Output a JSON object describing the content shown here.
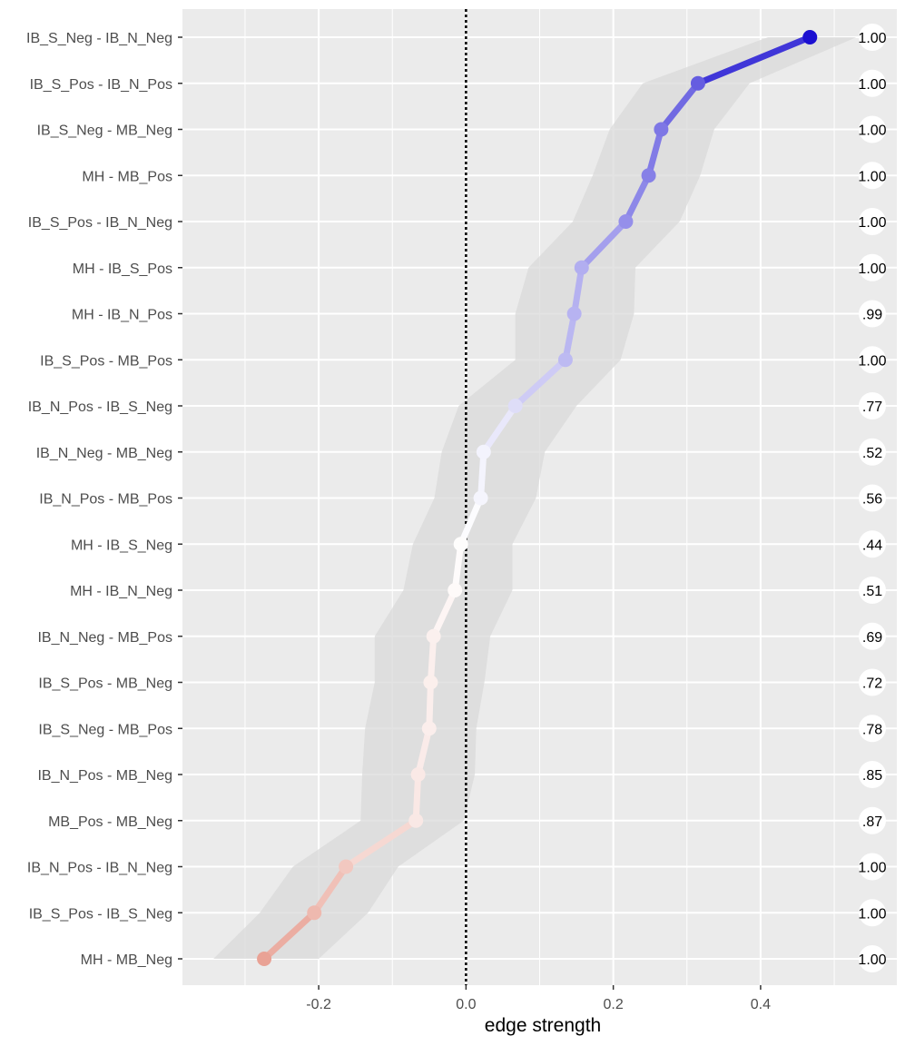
{
  "chart_data": {
    "type": "line",
    "xlabel": "edge strength",
    "ylabel": "",
    "xlim": [
      -0.385,
      0.585
    ],
    "x_ticks": [
      "-0.2",
      "0.0",
      "0.2",
      "0.4"
    ],
    "reference_line_x": 0.0,
    "color_negative": "#d9604a",
    "color_positive": "#1b0fd1",
    "band_color": "#d9d9d9",
    "panel_background": "#ebebeb",
    "grid": true,
    "points": [
      {
        "edge": "IB_S_Neg - IB_N_Neg",
        "value": 0.467,
        "lower": 0.41,
        "upper": 0.53,
        "label": "1.00"
      },
      {
        "edge": "IB_S_Pos - IB_N_Pos",
        "value": 0.315,
        "lower": 0.24,
        "upper": 0.385,
        "label": "1.00"
      },
      {
        "edge": "IB_S_Neg - MB_Neg",
        "value": 0.265,
        "lower": 0.195,
        "upper": 0.337,
        "label": "1.00"
      },
      {
        "edge": "MH - MB_Pos",
        "value": 0.248,
        "lower": 0.172,
        "upper": 0.318,
        "label": "1.00"
      },
      {
        "edge": "IB_S_Pos - IB_N_Neg",
        "value": 0.217,
        "lower": 0.145,
        "upper": 0.29,
        "label": "1.00"
      },
      {
        "edge": "MH - IB_S_Pos",
        "value": 0.157,
        "lower": 0.085,
        "upper": 0.23,
        "label": "1.00"
      },
      {
        "edge": "MH - IB_N_Pos",
        "value": 0.147,
        "lower": 0.067,
        "upper": 0.228,
        "label": ".99"
      },
      {
        "edge": "IB_S_Pos - MB_Pos",
        "value": 0.135,
        "lower": 0.067,
        "upper": 0.21,
        "label": "1.00"
      },
      {
        "edge": "IB_N_Pos - IB_S_Neg",
        "value": 0.067,
        "lower": -0.01,
        "upper": 0.15,
        "label": ".77"
      },
      {
        "edge": "IB_N_Neg - MB_Neg",
        "value": 0.024,
        "lower": -0.033,
        "upper": 0.107,
        "label": ".52"
      },
      {
        "edge": "IB_N_Pos - MB_Pos",
        "value": 0.02,
        "lower": -0.043,
        "upper": 0.095,
        "label": ".56"
      },
      {
        "edge": "MH - IB_S_Neg",
        "value": -0.007,
        "lower": -0.072,
        "upper": 0.063,
        "label": ".44"
      },
      {
        "edge": "MH - IB_N_Neg",
        "value": -0.015,
        "lower": -0.085,
        "upper": 0.063,
        "label": ".51"
      },
      {
        "edge": "IB_N_Neg - MB_Pos",
        "value": -0.044,
        "lower": -0.124,
        "upper": 0.033,
        "label": ".69"
      },
      {
        "edge": "IB_S_Pos - MB_Neg",
        "value": -0.048,
        "lower": -0.124,
        "upper": 0.025,
        "label": ".72"
      },
      {
        "edge": "IB_S_Neg - MB_Pos",
        "value": -0.05,
        "lower": -0.137,
        "upper": 0.014,
        "label": ".78"
      },
      {
        "edge": "IB_N_Pos - MB_Neg",
        "value": -0.065,
        "lower": -0.141,
        "upper": 0.012,
        "label": ".85"
      },
      {
        "edge": "MB_Pos - MB_Neg",
        "value": -0.068,
        "lower": -0.143,
        "upper": -0.003,
        "label": ".87"
      },
      {
        "edge": "IB_N_Pos - IB_N_Neg",
        "value": -0.163,
        "lower": -0.235,
        "upper": -0.092,
        "label": "1.00"
      },
      {
        "edge": "IB_S_Pos - IB_S_Neg",
        "value": -0.206,
        "lower": -0.28,
        "upper": -0.133,
        "label": "1.00"
      },
      {
        "edge": "MH - MB_Neg",
        "value": -0.274,
        "lower": -0.343,
        "upper": -0.2,
        "label": "1.00"
      }
    ]
  }
}
